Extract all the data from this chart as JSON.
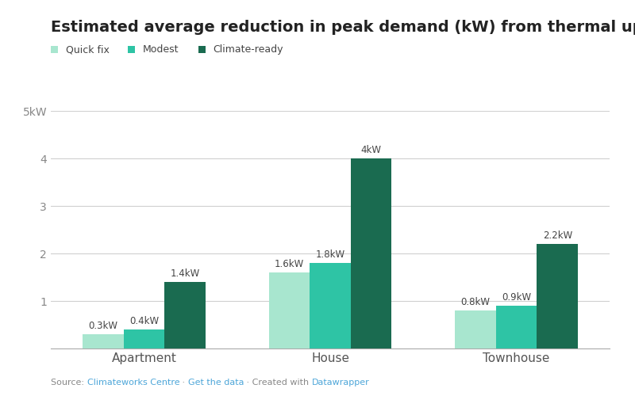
{
  "title": "Estimated average reduction in peak demand (kW) from thermal upgrades",
  "categories": [
    "Apartment",
    "House",
    "Townhouse"
  ],
  "series": [
    {
      "name": "Quick fix",
      "color": "#a8e6cf",
      "values": [
        0.3,
        1.6,
        0.8
      ]
    },
    {
      "name": "Modest",
      "color": "#2ec4a5",
      "values": [
        0.4,
        1.8,
        0.9
      ]
    },
    {
      "name": "Climate-ready",
      "color": "#1a6b50",
      "values": [
        1.4,
        4.0,
        2.2
      ]
    }
  ],
  "bar_labels": [
    [
      "0.3kW",
      "0.4kW",
      "1.4kW"
    ],
    [
      "1.6kW",
      "1.8kW",
      "4kW"
    ],
    [
      "0.8kW",
      "0.9kW",
      "2.2kW"
    ]
  ],
  "ylim": [
    0,
    5
  ],
  "yticks": [
    1,
    2,
    3,
    4,
    5
  ],
  "ytick_labels": [
    "1",
    "2",
    "3",
    "4",
    "5kW"
  ],
  "background_color": "#ffffff",
  "grid_color": "#d0d0d0",
  "title_fontsize": 14,
  "label_fontsize": 8.5,
  "tick_fontsize": 10,
  "legend_fontsize": 9,
  "bar_width": 0.22,
  "footer_color_parts": [
    {
      "text": "Source: ",
      "color": "#888888"
    },
    {
      "text": "Climateworks Centre",
      "color": "#4da6d9"
    },
    {
      "text": " · ",
      "color": "#888888"
    },
    {
      "text": "Get the data",
      "color": "#4da6d9"
    },
    {
      "text": " · Created with ",
      "color": "#888888"
    },
    {
      "text": "Datawrapper",
      "color": "#4da6d9"
    }
  ]
}
